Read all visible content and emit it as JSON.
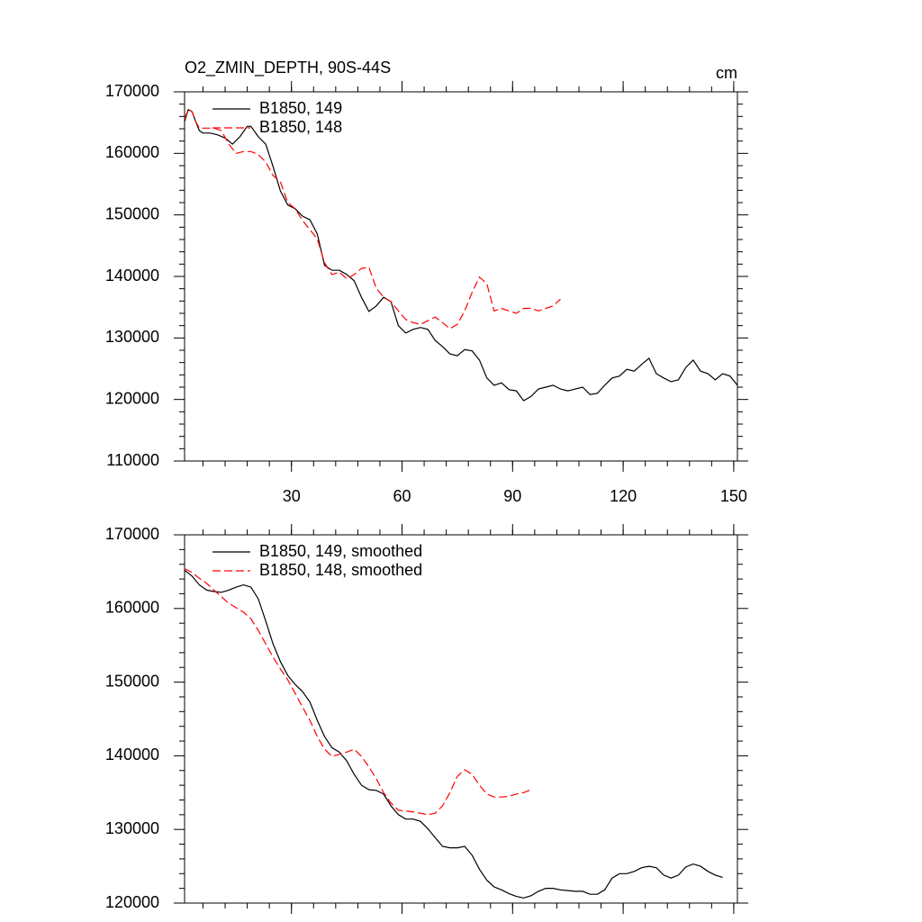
{
  "chart_data": [
    {
      "type": "line",
      "title": "O2_ZMIN_DEPTH, 90S-44S",
      "units": "cm",
      "legend": "upper left",
      "xlim": [
        1,
        151
      ],
      "ylim": [
        110000,
        170000
      ],
      "xticks": [
        30,
        60,
        90,
        120,
        150
      ],
      "yticks": [
        110000,
        120000,
        130000,
        140000,
        150000,
        160000,
        170000
      ],
      "series": [
        {
          "name": "B1850, 149",
          "color": "#000000",
          "style": "solid",
          "x": [
            1,
            2,
            3,
            4,
            5,
            6,
            8,
            10,
            12,
            14,
            16,
            18,
            19,
            21,
            23,
            25,
            27,
            29,
            31,
            33,
            35,
            37,
            39,
            41,
            43,
            45,
            47,
            49,
            51,
            53,
            55,
            57,
            59,
            61,
            63,
            65,
            67,
            69,
            71,
            73,
            75,
            77,
            79,
            81,
            83,
            85,
            87,
            89,
            91,
            93,
            95,
            97,
            99,
            101,
            103,
            105,
            107,
            109,
            111,
            113,
            115,
            117,
            119,
            121,
            123,
            125,
            127,
            129,
            131,
            133,
            135,
            137,
            139,
            141,
            143,
            145,
            147,
            149,
            151
          ],
          "values": [
            165200,
            167100,
            166800,
            165200,
            163700,
            163300,
            163300,
            163000,
            162500,
            161500,
            162700,
            164400,
            164400,
            162700,
            161500,
            157900,
            153900,
            151600,
            151000,
            149800,
            149200,
            146900,
            141800,
            141000,
            141000,
            140300,
            139300,
            136600,
            134300,
            135200,
            136600,
            135900,
            132000,
            130800,
            131400,
            131700,
            131400,
            129600,
            128600,
            127400,
            127100,
            128100,
            127900,
            126400,
            123500,
            122300,
            122700,
            121600,
            121400,
            119800,
            120500,
            121700,
            122000,
            122300,
            121700,
            121400,
            121700,
            122000,
            120800,
            121000,
            122300,
            123500,
            123800,
            124900,
            124600,
            125700,
            126700,
            124200,
            123500,
            122900,
            123200,
            125200,
            126400,
            124600,
            124200,
            123200,
            124200,
            123800,
            122300
          ]
        },
        {
          "name": "B1850, 148",
          "color": "#ff0000",
          "style": "dashed",
          "x": [
            1,
            2,
            3,
            4,
            5,
            7,
            9,
            11,
            13,
            15,
            17,
            19,
            21,
            23,
            25,
            27,
            29,
            31,
            33,
            35,
            37,
            39,
            41,
            43,
            45,
            47,
            49,
            51,
            53,
            55,
            57,
            59,
            61,
            63,
            65,
            67,
            69,
            71,
            73,
            75,
            77,
            79,
            81,
            83,
            85,
            87,
            89,
            91,
            93,
            95,
            97,
            99,
            101,
            103
          ],
          "values": [
            165600,
            167100,
            166800,
            165200,
            164100,
            164100,
            164100,
            163700,
            161500,
            160000,
            160300,
            160300,
            159800,
            158600,
            156400,
            155400,
            152000,
            151000,
            149100,
            147600,
            146100,
            142200,
            140300,
            140700,
            139600,
            140300,
            141300,
            141500,
            138100,
            136600,
            135900,
            134400,
            133000,
            132500,
            132200,
            132800,
            133400,
            132500,
            131500,
            132200,
            134400,
            137400,
            139900,
            138800,
            134400,
            134800,
            134400,
            134000,
            134800,
            134800,
            134400,
            134800,
            135200,
            136300
          ]
        }
      ]
    },
    {
      "type": "line",
      "legend": "upper left",
      "xlim": [
        1,
        151
      ],
      "ylim": [
        120000,
        170000
      ],
      "xticks": [
        30,
        60,
        90,
        120,
        150
      ],
      "yticks": [
        120000,
        130000,
        140000,
        150000,
        160000,
        170000
      ],
      "series": [
        {
          "name": "B1850, 149, smoothed",
          "color": "#000000",
          "style": "solid",
          "x": [
            1,
            3,
            5,
            7,
            9,
            11,
            13,
            15,
            17,
            19,
            21,
            23,
            25,
            27,
            29,
            31,
            33,
            35,
            37,
            39,
            41,
            43,
            45,
            47,
            49,
            51,
            53,
            55,
            57,
            59,
            61,
            63,
            65,
            67,
            69,
            71,
            73,
            75,
            77,
            79,
            81,
            83,
            85,
            87,
            89,
            91,
            93,
            95,
            97,
            99,
            101,
            103,
            105,
            107,
            109,
            111,
            113,
            115,
            117,
            119,
            121,
            123,
            125,
            127,
            129,
            131,
            133,
            135,
            137,
            139,
            141,
            143,
            145,
            147
          ],
          "values": [
            165200,
            164400,
            163200,
            162500,
            162300,
            162200,
            162500,
            162900,
            163200,
            162900,
            161300,
            158300,
            155200,
            152800,
            150900,
            149700,
            148700,
            147300,
            144800,
            142600,
            141100,
            140500,
            139300,
            137500,
            136000,
            135400,
            135300,
            134800,
            133200,
            132000,
            131400,
            131400,
            131100,
            130100,
            128900,
            127700,
            127500,
            127500,
            127700,
            126500,
            124600,
            123100,
            122200,
            121800,
            121300,
            120900,
            120700,
            121000,
            121600,
            122000,
            122000,
            121800,
            121700,
            121600,
            121600,
            121200,
            121200,
            121800,
            123400,
            124000,
            124000,
            124300,
            124800,
            125000,
            124800,
            123800,
            123400,
            123800,
            124900,
            125300,
            125000,
            124300,
            123800,
            123500
          ]
        },
        {
          "name": "B1850, 148, smoothed",
          "color": "#ff0000",
          "style": "dashed",
          "x": [
            1,
            3,
            5,
            7,
            9,
            11,
            13,
            15,
            17,
            19,
            21,
            23,
            25,
            27,
            29,
            31,
            33,
            35,
            37,
            39,
            41,
            43,
            45,
            47,
            49,
            51,
            53,
            55,
            57,
            59,
            61,
            63,
            65,
            67,
            69,
            71,
            73,
            75,
            77,
            79,
            81,
            83,
            85,
            87,
            89,
            91,
            93,
            95
          ],
          "values": [
            165400,
            164900,
            164100,
            163400,
            162500,
            161600,
            160700,
            160100,
            159500,
            158600,
            157000,
            155200,
            153400,
            151800,
            150300,
            148500,
            146600,
            144800,
            142600,
            140900,
            139900,
            140200,
            140500,
            140900,
            139900,
            138500,
            136900,
            135000,
            133600,
            132600,
            132500,
            132400,
            132200,
            132000,
            132200,
            133200,
            135000,
            137200,
            138100,
            137500,
            136000,
            134800,
            134400,
            134400,
            134500,
            134800,
            135000,
            135400
          ]
        }
      ]
    }
  ]
}
